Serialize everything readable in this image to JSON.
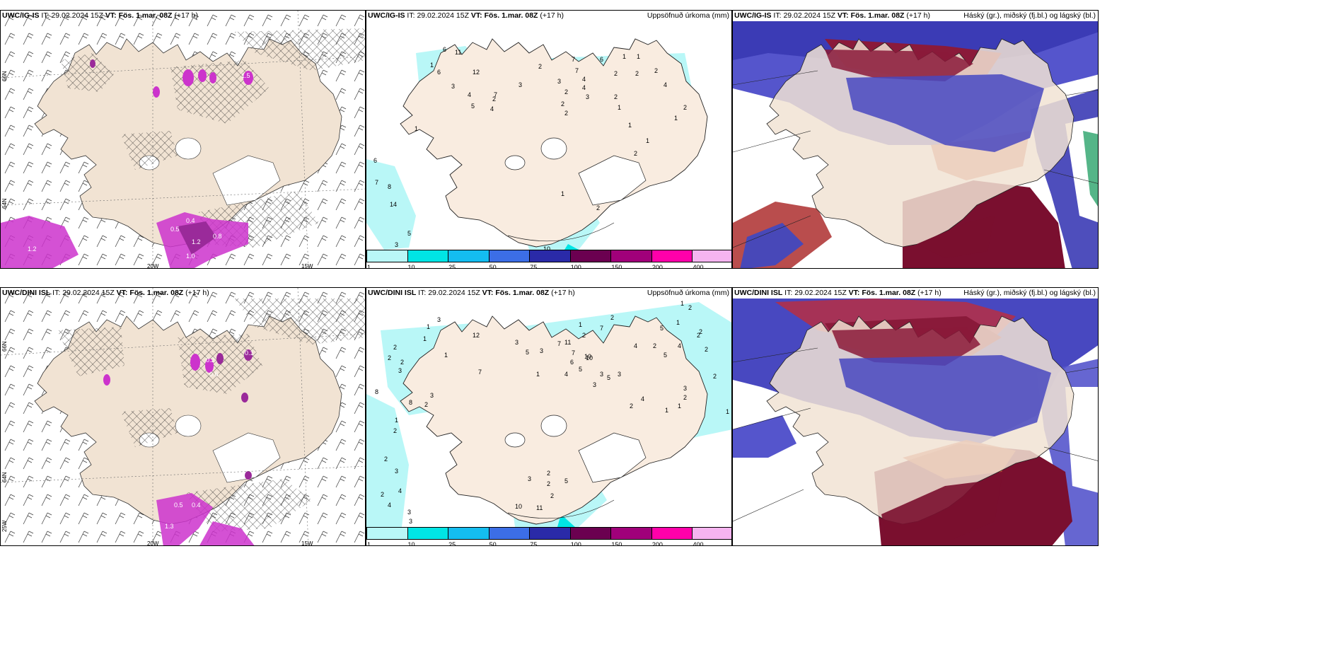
{
  "panels": [
    {
      "id": "p1",
      "model": "UWC/IG-IS",
      "it_label": "IT:",
      "it": "29.02.2024 15Z",
      "vt_label": "VT:",
      "vt": "Fös. 1.mar. 08Z",
      "lead": "(+17 h)",
      "right": ""
    },
    {
      "id": "p2",
      "model": "UWC/IG-IS",
      "it_label": "IT:",
      "it": "29.02.2024 15Z",
      "vt_label": "VT:",
      "vt": "Fös. 1.mar. 08Z",
      "lead": "(+17 h)",
      "right": "Uppsöfnuð úrkoma (mm)"
    },
    {
      "id": "p3",
      "model": "UWC/IG-IS",
      "it_label": "IT:",
      "it": "29.02.2024 15Z",
      "vt_label": "VT:",
      "vt": "Fös. 1.mar. 08Z",
      "lead": "(+17 h)",
      "right": "Háský (gr.), miðský (fj.bl.) og lágský (bl.)"
    },
    {
      "id": "p4",
      "model": "UWC/DINI ISL",
      "it_label": "IT:",
      "it": "29.02.2024 15Z",
      "vt_label": "VT:",
      "vt": "Fös. 1.mar. 08Z",
      "lead": "(+17 h)",
      "right": ""
    },
    {
      "id": "p5",
      "model": "UWC/DINI ISL",
      "it_label": "IT:",
      "it": "29.02.2024 15Z",
      "vt_label": "VT:",
      "vt": "Fös. 1.mar. 08Z",
      "lead": "(+17 h)",
      "right": "Uppsöfnuð úrkoma (mm)"
    },
    {
      "id": "p6",
      "model": "UWC/DINI ISL",
      "it_label": "IT:",
      "it": "29.02.2024 15Z",
      "vt_label": "VT:",
      "vt": "Fös. 1.mar. 08Z",
      "lead": "(+17 h)",
      "right": "Háský (gr.), miðský (fj.bl.) og lágský (bl.)"
    }
  ],
  "axis_labels": {
    "lat66": "66N",
    "lat64": "64N",
    "lat63": "63N",
    "lon20": "20W",
    "lon15": "15W",
    "lon25": "25W"
  },
  "colorbar": {
    "ticks": [
      "1",
      "10",
      "25",
      "50",
      "75",
      "100",
      "150",
      "200",
      "400"
    ],
    "colors": [
      "#b9f7f7",
      "#00e5e5",
      "#14bdf0",
      "#3c6ee6",
      "#2a2aa8",
      "#6b0050",
      "#a0007a",
      "#ff00aa",
      "#f5b4f0"
    ]
  },
  "precip_top_labels": [
    "6",
    "11",
    "1",
    "12",
    "6",
    "3",
    "4",
    "7",
    "5",
    "3",
    "4",
    "2",
    "3",
    "7",
    "4",
    "2",
    "7",
    "6",
    "1",
    "1",
    "2",
    "2",
    "2",
    "2",
    "4",
    "4",
    "2",
    "2",
    "1",
    "2",
    "3",
    "1",
    "2",
    "1",
    "2",
    "1",
    "6",
    "7",
    "8",
    "14",
    "5",
    "3",
    "1",
    "10",
    "1",
    "2"
  ],
  "precip_bottom_labels": [
    "3",
    "1",
    "1",
    "12",
    "2",
    "7",
    "1",
    "3",
    "5",
    "3",
    "7",
    "11",
    "7",
    "1",
    "1",
    "2",
    "10",
    "2",
    "7",
    "4",
    "6",
    "5",
    "3",
    "8",
    "5",
    "4",
    "2",
    "10",
    "4",
    "3",
    "3",
    "5",
    "5",
    "1",
    "2",
    "2",
    "2",
    "4",
    "2",
    "1",
    "1",
    "2",
    "3",
    "1",
    "2",
    "2",
    "1",
    "3",
    "2",
    "1",
    "2",
    "2",
    "3",
    "2",
    "8",
    "2",
    "3",
    "2",
    "4",
    "3",
    "4",
    "3",
    "2",
    "5",
    "11",
    "10",
    "2",
    "2",
    "3"
  ],
  "wind_label_values_top": [
    "0.4",
    "0.5",
    "1.0",
    "1.2",
    "1.2",
    "0.8",
    "1.5"
  ],
  "wind_label_values_bottom": [
    "0.1",
    "0.2",
    "0.5",
    "0.6",
    "0.4",
    "1.3"
  ]
}
